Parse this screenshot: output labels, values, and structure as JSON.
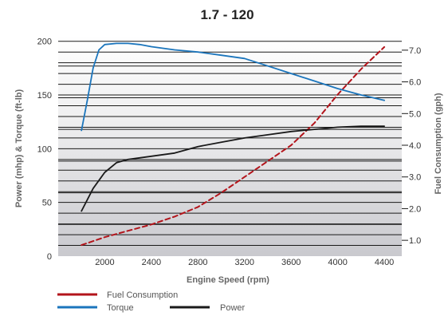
{
  "chart_data": {
    "type": "line",
    "title": "1.7 - 120",
    "xlabel": "Engine Speed (rpm)",
    "ylabel_left": "Power (mhp) & Torque (ft-lb)",
    "ylabel_right": "Fuel Consumption (gph)",
    "x_ticks": [
      2000,
      2400,
      2800,
      3200,
      3600,
      4000,
      4400
    ],
    "y_left_ticks": [
      0,
      50,
      100,
      150,
      200
    ],
    "y_right_ticks": [
      "1.0",
      "2.0",
      "3.0",
      "4.0",
      "5.0",
      "6.0",
      "7.0"
    ],
    "xlim": [
      1600,
      4550
    ],
    "ylim_left": [
      0,
      205
    ],
    "ylim_right": [
      0.5,
      7.45
    ],
    "grid": "horizontal",
    "legend_position": "bottom-left",
    "series": [
      {
        "name": "Fuel Consumption",
        "axis": "right",
        "color": "#b3141b",
        "dash": true,
        "x": [
          1800,
          2000,
          2200,
          2400,
          2600,
          2800,
          3000,
          3200,
          3400,
          3600,
          3800,
          4000,
          4200,
          4400
        ],
        "y": [
          0.85,
          1.1,
          1.3,
          1.5,
          1.75,
          2.05,
          2.5,
          3.0,
          3.5,
          4.0,
          4.7,
          5.6,
          6.4,
          7.1
        ]
      },
      {
        "name": "Torque",
        "axis": "left",
        "color": "#1b75bc",
        "dash": false,
        "x": [
          1800,
          1850,
          1900,
          1950,
          2000,
          2100,
          2200,
          2300,
          2400,
          2600,
          2800,
          3000,
          3200,
          3400,
          3600,
          3800,
          4000,
          4200,
          4400
        ],
        "y": [
          117,
          145,
          175,
          192,
          197,
          198,
          198,
          197,
          195,
          192,
          190,
          187,
          184,
          177,
          170,
          163,
          156,
          150,
          145
        ]
      },
      {
        "name": "Power",
        "axis": "left",
        "color": "#1a1a1a",
        "dash": false,
        "x": [
          1800,
          1900,
          2000,
          2100,
          2200,
          2400,
          2600,
          2800,
          3000,
          3200,
          3400,
          3600,
          3800,
          4000,
          4200,
          4400
        ],
        "y": [
          42,
          63,
          78,
          87,
          90,
          93,
          96,
          102,
          106,
          110,
          113,
          116,
          118,
          120,
          121,
          121
        ]
      }
    ]
  }
}
